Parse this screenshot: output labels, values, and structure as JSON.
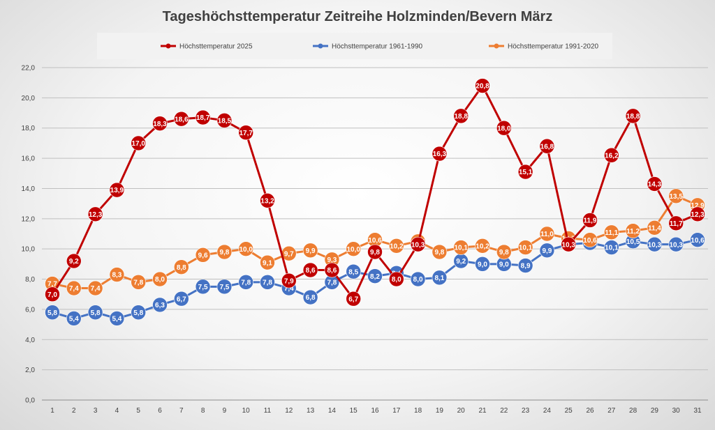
{
  "chart_data": {
    "type": "line",
    "title": "Tageshöchsttemperatur Zeitreihe Holzminden/Bevern März",
    "xlabel": "",
    "ylabel": "",
    "ylim": [
      0,
      22
    ],
    "yticks": [
      "0,0",
      "2,0",
      "4,0",
      "6,0",
      "8,0",
      "10,0",
      "12,0",
      "14,0",
      "16,0",
      "18,0",
      "20,0",
      "22,0"
    ],
    "categories": [
      "1",
      "2",
      "3",
      "4",
      "5",
      "6",
      "7",
      "8",
      "9",
      "10",
      "11",
      "12",
      "13",
      "14",
      "15",
      "16",
      "17",
      "18",
      "19",
      "20",
      "21",
      "22",
      "23",
      "24",
      "25",
      "26",
      "27",
      "28",
      "29",
      "30",
      "31"
    ],
    "grid": true,
    "legend_position": "top",
    "series": [
      {
        "name": "Höchsttemperatur 2025",
        "color": "#c00000",
        "values": [
          7.0,
          9.2,
          12.3,
          13.9,
          17.0,
          18.3,
          18.6,
          18.7,
          18.5,
          17.7,
          13.2,
          7.9,
          8.6,
          8.6,
          6.7,
          9.8,
          8.0,
          10.3,
          16.3,
          18.8,
          20.8,
          18.0,
          15.1,
          16.8,
          10.3,
          11.9,
          16.2,
          18.8,
          14.3,
          11.7,
          12.3
        ],
        "labels": [
          "7,0",
          "9,2",
          "12,3",
          "13,9",
          "17,0",
          "18,3",
          "18,6",
          "18,7",
          "18,5",
          "17,7",
          "13,2",
          "7,9",
          "8,6",
          "8,6",
          "6,7",
          "9,8",
          "8,0",
          "10,3",
          "16,3",
          "18,8",
          "20,8",
          "18,0",
          "15,1",
          "16,8",
          "10,3",
          "11,9",
          "16,2",
          "18,8",
          "14,3",
          "11,7",
          "12,3"
        ]
      },
      {
        "name": "Höchsttemperatur 1961-1990",
        "color": "#4472c4",
        "values": [
          5.8,
          5.4,
          5.8,
          5.4,
          5.8,
          6.3,
          6.7,
          7.5,
          7.5,
          7.8,
          7.8,
          7.4,
          6.8,
          7.8,
          8.5,
          8.2,
          8.4,
          8.0,
          8.1,
          9.2,
          9.0,
          9.0,
          8.9,
          9.9,
          10.3,
          10.4,
          10.1,
          10.5,
          10.3,
          10.3,
          10.6
        ],
        "labels": [
          "5,8",
          "5,4",
          "5,8",
          "5,4",
          "5,8",
          "6,3",
          "6,7",
          "7,5",
          "7,5",
          "7,8",
          "7,8",
          "7,4",
          "6,8",
          "7,8",
          "8,5",
          "8,2",
          "8,4",
          "8,0",
          "8,1",
          "9,2",
          "9,0",
          "9,0",
          "8,9",
          "9,9",
          "10,3",
          "10,4",
          "10,1",
          "10,5",
          "10,3",
          "10,3",
          "10,6"
        ]
      },
      {
        "name": "Höchsttemperatur 1991-2020",
        "color": "#ed7d31",
        "values": [
          7.7,
          7.4,
          7.4,
          8.3,
          7.8,
          8.0,
          8.8,
          9.6,
          9.8,
          10.0,
          9.1,
          9.7,
          9.9,
          9.3,
          10.0,
          10.6,
          10.2,
          10.5,
          9.8,
          10.1,
          10.2,
          9.8,
          10.1,
          11.0,
          10.7,
          10.6,
          11.1,
          11.2,
          11.4,
          13.5,
          12.9
        ],
        "labels": [
          "7,7",
          "7,4",
          "7,4",
          "8,3",
          "7,8",
          "8,0",
          "8,8",
          "9,6",
          "9,8",
          "10,0",
          "9,1",
          "9,7",
          "9,9",
          "9,3",
          "10,0",
          "10,6",
          "10,2",
          "10,5",
          "9,8",
          "10,1",
          "10,2",
          "9,8",
          "10,1",
          "11,0",
          "10,7",
          "10,6",
          "11,1",
          "11,2",
          "11,4",
          "13,5",
          "12,9"
        ]
      }
    ]
  }
}
